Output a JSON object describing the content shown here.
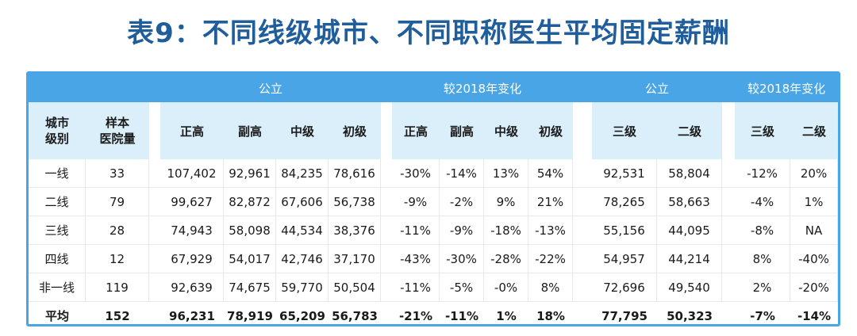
{
  "title": "表9：不同线级城市、不同职称医生平均固定薪酬",
  "table": {
    "group_headers": {
      "public_a": "公立",
      "change_a": "较2018年变化",
      "public_b": "公立",
      "change_b": "较2018年变化"
    },
    "col_headers": {
      "city_tier_line1": "城市",
      "city_tier_line2": "级别",
      "sample_line1": "样本",
      "sample_line2": "医院量",
      "a": [
        "正高",
        "副高",
        "中级",
        "初级"
      ],
      "a_change": [
        "正高",
        "副高",
        "中级",
        "初级"
      ],
      "b": [
        "三级",
        "二级"
      ],
      "b_change": [
        "三级",
        "二级"
      ]
    },
    "rows": [
      {
        "tier": "一线",
        "sample": "33",
        "a": [
          "107,402",
          "92,961",
          "84,235",
          "78,616"
        ],
        "a_change": [
          "-30%",
          "-14%",
          "13%",
          "54%"
        ],
        "b": [
          "92,531",
          "58,804"
        ],
        "b_change": [
          "-12%",
          "20%"
        ]
      },
      {
        "tier": "二线",
        "sample": "79",
        "a": [
          "99,627",
          "82,872",
          "67,606",
          "56,738"
        ],
        "a_change": [
          "-9%",
          "-2%",
          "9%",
          "21%"
        ],
        "b": [
          "78,265",
          "58,663"
        ],
        "b_change": [
          "-4%",
          "1%"
        ]
      },
      {
        "tier": "三线",
        "sample": "28",
        "a": [
          "74,943",
          "58,098",
          "44,534",
          "38,376"
        ],
        "a_change": [
          "-11%",
          "-9%",
          "-18%",
          "-13%"
        ],
        "b": [
          "55,156",
          "44,095"
        ],
        "b_change": [
          "-8%",
          "NA"
        ]
      },
      {
        "tier": "四线",
        "sample": "12",
        "a": [
          "67,929",
          "54,017",
          "42,746",
          "37,170"
        ],
        "a_change": [
          "-43%",
          "-30%",
          "-28%",
          "-22%"
        ],
        "b": [
          "54,957",
          "44,214"
        ],
        "b_change": [
          "8%",
          "-40%"
        ]
      },
      {
        "tier": "非一线",
        "sample": "119",
        "a": [
          "92,639",
          "74,675",
          "59,770",
          "50,504"
        ],
        "a_change": [
          "-11%",
          "-5%",
          "-0%",
          "8%"
        ],
        "b": [
          "72,696",
          "49,540"
        ],
        "b_change": [
          "2%",
          "-20%"
        ]
      },
      {
        "tier": "平均",
        "sample": "152",
        "a": [
          "96,231",
          "78,919",
          "65,209",
          "56,783"
        ],
        "a_change": [
          "-21%",
          "-11%",
          "1%",
          "18%"
        ],
        "b": [
          "77,795",
          "50,323"
        ],
        "b_change": [
          "-7%",
          "-14%"
        ]
      }
    ]
  },
  "colors": {
    "accent": "#4aa5e6",
    "subheader_bg": "#dbeffb",
    "title": "#1f5d9b"
  }
}
